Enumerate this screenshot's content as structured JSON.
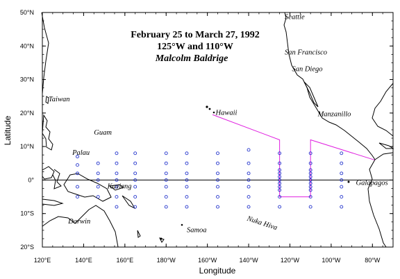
{
  "title": {
    "line1": "February 25 to March 27, 1992",
    "line2": "125°W and 110°W",
    "line3": "Malcolm Baldrige"
  },
  "axes": {
    "xlabel": "Longitude",
    "ylabel": "Latitude",
    "xlim": [
      120,
      290
    ],
    "ylim": [
      -20,
      50
    ],
    "xticks": [
      {
        "v": 120,
        "label": "120°E"
      },
      {
        "v": 140,
        "label": "140°E"
      },
      {
        "v": 160,
        "label": "160°E"
      },
      {
        "v": 180,
        "label": "180°W"
      },
      {
        "v": 200,
        "label": "160°W"
      },
      {
        "v": 220,
        "label": "140°W"
      },
      {
        "v": 240,
        "label": "120°W"
      },
      {
        "v": 260,
        "label": "100°W"
      },
      {
        "v": 280,
        "label": "80°W"
      }
    ],
    "yticks": [
      {
        "v": 50,
        "label": "50°N"
      },
      {
        "v": 40,
        "label": "40°N"
      },
      {
        "v": 30,
        "label": "30°N"
      },
      {
        "v": 20,
        "label": "20°N"
      },
      {
        "v": 10,
        "label": "10°N"
      },
      {
        "v": 0,
        "label": "0°"
      },
      {
        "v": -10,
        "label": "10°S"
      },
      {
        "v": -20,
        "label": "20°S"
      }
    ]
  },
  "places": [
    {
      "name": "Seattle",
      "lon": 237.5,
      "lat": 48
    },
    {
      "name": "San Francisco",
      "lon": 237.5,
      "lat": 37.5
    },
    {
      "name": "San Diego",
      "lon": 241,
      "lat": 32.5
    },
    {
      "name": "Taiwan",
      "lon": 123,
      "lat": 23.5
    },
    {
      "name": "Hawaii",
      "lon": 204,
      "lat": 19.5
    },
    {
      "name": "Manzanillo",
      "lon": 253.5,
      "lat": 19
    },
    {
      "name": "Guam",
      "lon": 145,
      "lat": 13.5
    },
    {
      "name": "Palau",
      "lon": 134.5,
      "lat": 7.5
    },
    {
      "name": "Kavieng",
      "lon": 151.5,
      "lat": -2.5
    },
    {
      "name": "Galapagos",
      "lon": 272,
      "lat": -1.5
    },
    {
      "name": "Nuka Hiva",
      "lon": 219,
      "lat": -12
    },
    {
      "name": "Darwin",
      "lon": 132.5,
      "lat": -13
    },
    {
      "name": "Samoa",
      "lon": 190,
      "lat": -15.5
    }
  ],
  "chart_data": {
    "type": "map",
    "track_color": "#e020e0",
    "station_color": "#2233cc",
    "cruise_track": [
      {
        "lon": 202.5,
        "lat": 19.5
      },
      {
        "lon": 235,
        "lat": 12
      },
      {
        "lon": 235,
        "lat": -5
      },
      {
        "lon": 250,
        "lat": -5
      },
      {
        "lon": 250,
        "lat": 12
      },
      {
        "lon": 281,
        "lat": 6
      }
    ],
    "stations": [
      {
        "lon": 137,
        "lats": [
          7,
          4.5,
          2,
          -2,
          -5
        ]
      },
      {
        "lon": 147,
        "lats": [
          5,
          2,
          0,
          -2,
          -5
        ]
      },
      {
        "lon": 156,
        "lats": [
          8,
          5,
          2,
          0,
          -2,
          -5,
          -8
        ]
      },
      {
        "lon": 165,
        "lats": [
          8,
          5,
          2,
          0,
          -2,
          -5,
          -8
        ]
      },
      {
        "lon": 180,
        "lats": [
          8,
          5,
          2,
          0,
          -2,
          -5,
          -8
        ]
      },
      {
        "lon": 190,
        "lats": [
          8,
          5,
          2,
          0,
          -2,
          -5,
          -8
        ]
      },
      {
        "lon": 205,
        "lats": [
          8,
          5,
          2,
          0,
          -2,
          -5,
          -8
        ]
      },
      {
        "lon": 220,
        "lats": [
          9,
          5,
          2,
          0,
          -2,
          -5,
          -8
        ]
      },
      {
        "lon": 235,
        "lats": [
          8,
          5,
          3,
          2,
          1,
          0,
          -1,
          -2,
          -3,
          -5,
          -8
        ]
      },
      {
        "lon": 250,
        "lats": [
          8,
          5,
          3,
          2,
          1,
          0,
          -1,
          -2,
          -3,
          -5,
          -8
        ]
      },
      {
        "lon": 265,
        "lats": [
          8,
          5,
          2,
          0,
          -2,
          -5,
          -8
        ]
      }
    ]
  }
}
